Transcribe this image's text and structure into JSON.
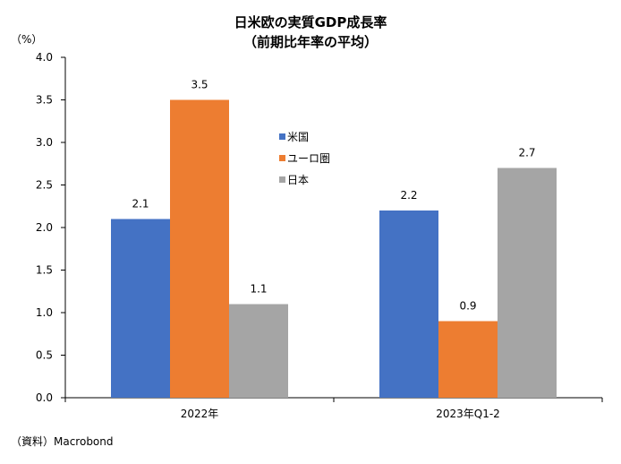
{
  "chart_data": {
    "type": "bar",
    "title": "日米欧の実質GDP成長率",
    "subtitle": "（前期比年率の平均）",
    "ylabel": "（%）",
    "xlabel": "",
    "ylim": [
      0,
      4.0
    ],
    "ytick_step": 0.5,
    "ytick_labels": [
      "0.0",
      "0.5",
      "1.0",
      "1.5",
      "2.0",
      "2.5",
      "3.0",
      "3.5",
      "4.0"
    ],
    "categories": [
      "2022年",
      "2023年Q1-2"
    ],
    "series": [
      {
        "name": "米国",
        "color": "#4472C4",
        "values": [
          2.1,
          2.2
        ],
        "labels": [
          "2.1",
          "2.2"
        ]
      },
      {
        "name": "ユーロ圏",
        "color": "#ED7D31",
        "values": [
          3.5,
          0.9
        ],
        "labels": [
          "3.5",
          "0.9"
        ]
      },
      {
        "name": "日本",
        "color": "#A5A5A5",
        "values": [
          1.1,
          2.7
        ],
        "labels": [
          "1.1",
          "2.7"
        ]
      }
    ],
    "legend_position": "center-right",
    "grid": false,
    "source": "（資料）Macrobond"
  }
}
